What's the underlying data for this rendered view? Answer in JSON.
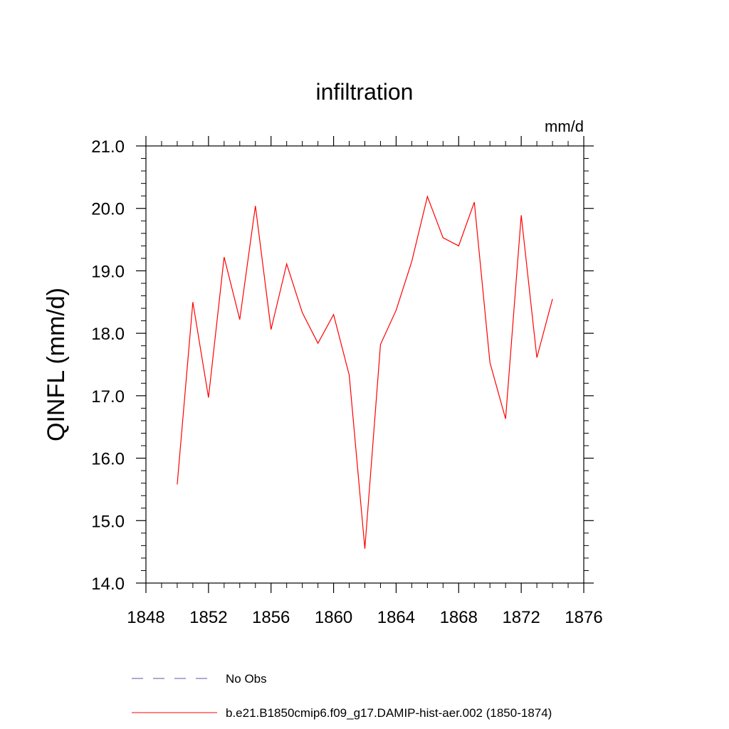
{
  "chart_data": {
    "type": "line",
    "title": "infiltration",
    "units": "mm/d",
    "ylabel": "QINFL  (mm/d)",
    "xlabel": "",
    "xlim": [
      1848,
      1876
    ],
    "ylim": [
      14.0,
      21.0
    ],
    "x_ticks": [
      1848,
      1852,
      1856,
      1860,
      1864,
      1868,
      1872,
      1876
    ],
    "x_tick_labels": [
      "1848",
      "1852",
      "1856",
      "1860",
      "1864",
      "1868",
      "1872",
      "1876"
    ],
    "y_ticks": [
      14.0,
      15.0,
      16.0,
      17.0,
      18.0,
      19.0,
      20.0,
      21.0
    ],
    "y_tick_labels": [
      "14.0",
      "15.0",
      "16.0",
      "17.0",
      "18.0",
      "19.0",
      "20.0",
      "21.0"
    ],
    "grid": false,
    "legend_position": "bottom",
    "series": [
      {
        "name": "b.e21.B1850cmip6.f09_g17.DAMIP-hist-aer.002 (1850-1874)",
        "color": "#ff0000",
        "style": "solid",
        "x": [
          1850,
          1851,
          1852,
          1853,
          1854,
          1855,
          1856,
          1857,
          1858,
          1859,
          1860,
          1861,
          1862,
          1863,
          1864,
          1865,
          1866,
          1867,
          1868,
          1869,
          1870,
          1871,
          1872,
          1873,
          1874
        ],
        "y": [
          15.58,
          18.5,
          16.97,
          19.22,
          18.22,
          20.04,
          18.06,
          19.11,
          18.33,
          17.84,
          18.3,
          17.33,
          14.55,
          17.82,
          18.37,
          19.15,
          20.19,
          19.53,
          19.4,
          20.1,
          17.53,
          16.63,
          19.89,
          17.61,
          18.55
        ]
      }
    ],
    "legend": [
      {
        "label": "No Obs",
        "color": "#5a5aa8",
        "style": "dashed"
      },
      {
        "label": "b.e21.B1850cmip6.f09_g17.DAMIP-hist-aer.002 (1850-1874)",
        "color": "#ff0000",
        "style": "solid"
      }
    ]
  }
}
